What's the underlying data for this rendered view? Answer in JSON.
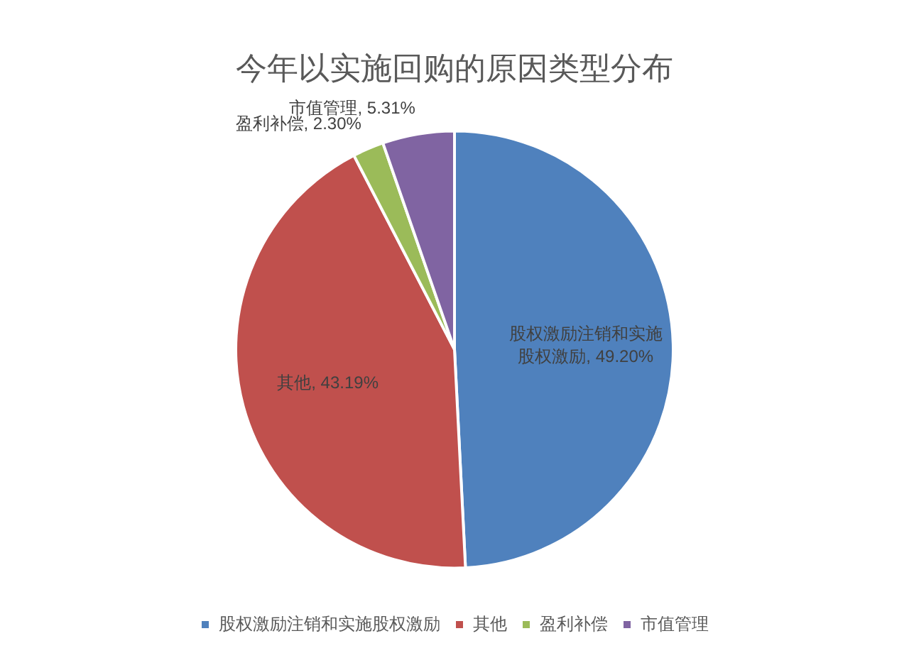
{
  "chart_data": {
    "type": "pie",
    "title": "今年以实施回购的原因类型分布",
    "categories": [
      "股权激励注销和实施股权激励",
      "其他",
      "盈利补偿",
      "市值管理"
    ],
    "values": [
      49.2,
      43.19,
      2.3,
      5.31
    ],
    "colors": [
      "#4f81bd",
      "#c0504d",
      "#9bbb59",
      "#8064a2"
    ],
    "value_labels": [
      "股权激励注销和实施股权激励, 49.20%",
      "其他, 43.19%",
      "盈利补偿, 2.30%",
      "市值管理, 5.31%"
    ],
    "legend": "bottom"
  }
}
